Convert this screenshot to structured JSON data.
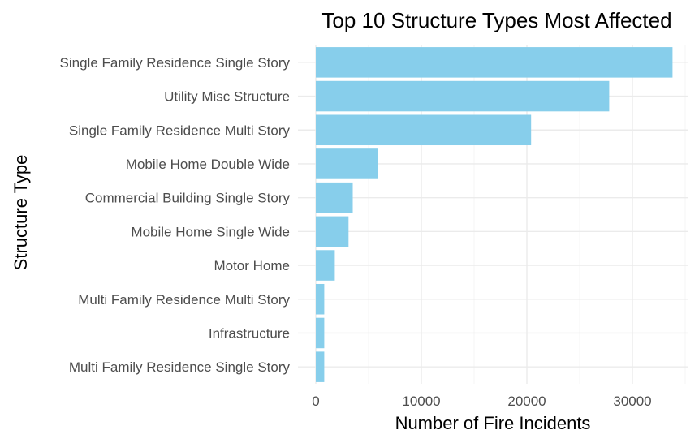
{
  "chart_data": {
    "type": "bar",
    "orientation": "horizontal",
    "title": "Top 10 Structure Types Most Affected",
    "xlabel": "Number of Fire Incidents",
    "ylabel": "Structure Type",
    "categories": [
      "Single Family Residence Single Story",
      "Utility Misc Structure",
      "Single Family Residence Multi Story",
      "Mobile Home Double Wide",
      "Commercial Building Single Story",
      "Mobile Home Single Wide",
      "Motor Home",
      "Multi Family Residence Multi Story",
      "Infrastructure",
      "Multi Family Residence Single Story"
    ],
    "values": [
      33800,
      27800,
      20400,
      5900,
      3500,
      3100,
      1800,
      800,
      800,
      800
    ],
    "xlim": [
      0,
      35000
    ],
    "xticks": [
      0,
      10000,
      20000,
      30000
    ],
    "xtick_labels": [
      "0",
      "10000",
      "20000",
      "30000"
    ],
    "grid": true,
    "legend": "none",
    "bar_color": "#87CEEB"
  }
}
